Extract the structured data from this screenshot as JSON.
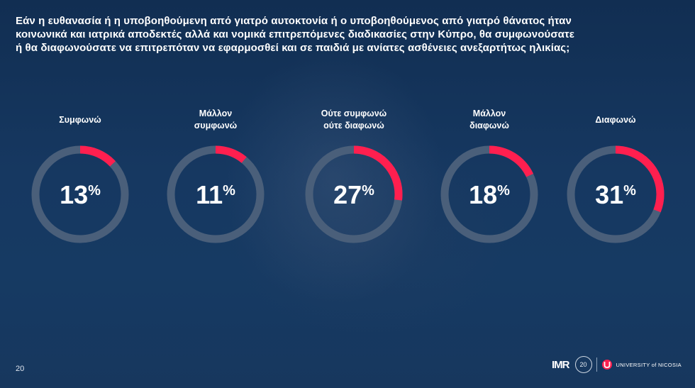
{
  "question": "Εάν η ευθανασία ή η υποβοηθούμενη από γιατρό αυτοκτονία ή ο υποβοηθούμενος από γιατρό θάνατος ήταν κοινωνικά και ιατρικά αποδεκτές αλλά και νομικά επιτρεπόμενες διαδικασίες στην Κύπρο, θα συμφωνούσατε ή θα διαφωνούσατε να επιτρεπόταν να εφαρμοσθεί και σε παιδιά με ανίατες ασθένειες ανεξαρτήτως ηλικίας;",
  "page_number": "20",
  "logos": {
    "imr": "IMR",
    "anniversary": "20",
    "university": "UNIVERSITY of NICOSIA"
  },
  "colors": {
    "background": "#163861",
    "ring_track": "#4a5f7a",
    "ring_fill": "#ff1f4f",
    "text": "#ffffff"
  },
  "chart_data": {
    "type": "donut",
    "unit": "%",
    "items": [
      {
        "label_lines": [
          "Συμφωνώ"
        ],
        "value": 13
      },
      {
        "label_lines": [
          "Μάλλον",
          "συμφωνώ"
        ],
        "value": 11
      },
      {
        "label_lines": [
          "Ούτε συμφωνώ",
          "ούτε διαφωνώ"
        ],
        "value": 27
      },
      {
        "label_lines": [
          "Μάλλον",
          "διαφωνώ"
        ],
        "value": 18
      },
      {
        "label_lines": [
          "Διαφωνώ"
        ],
        "value": 31
      }
    ]
  }
}
